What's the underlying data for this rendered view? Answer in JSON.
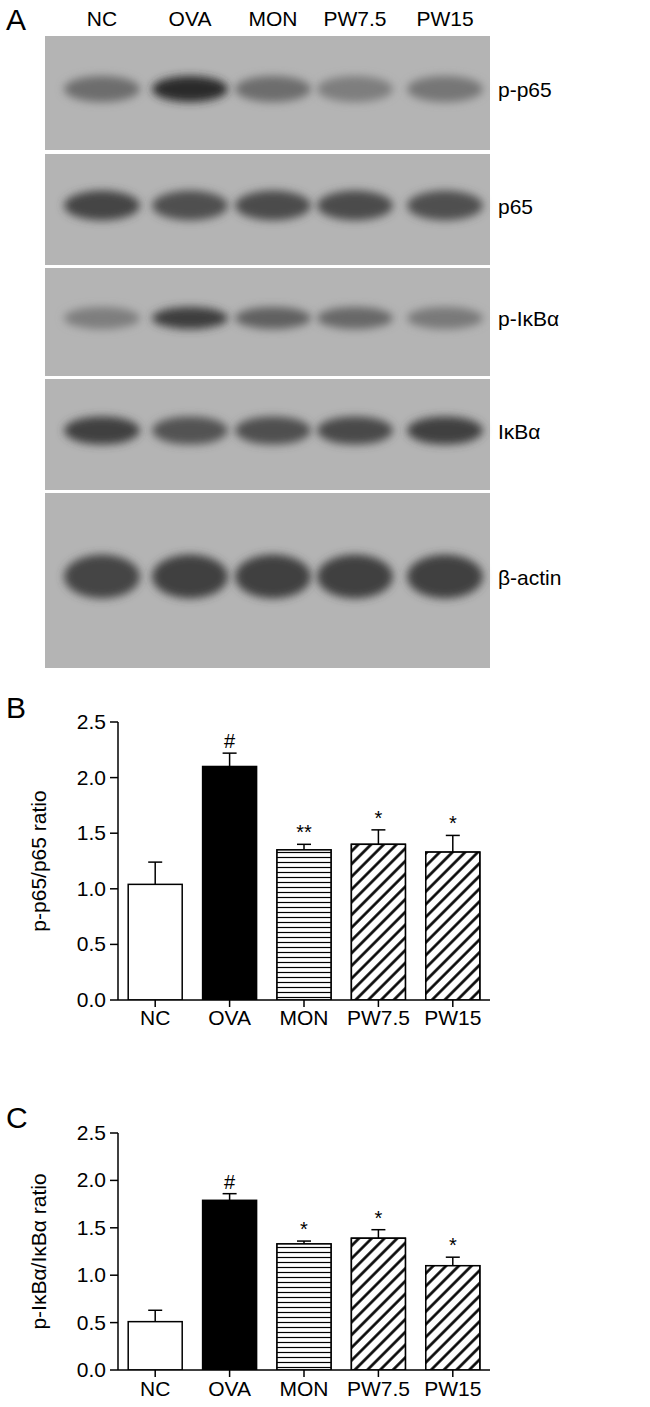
{
  "blot": {
    "panel_label": "A",
    "lanes": [
      "NC",
      "OVA",
      "MON",
      "PW7.5",
      "PW15"
    ],
    "rows": [
      {
        "label": "p-p65",
        "intensity": [
          0.55,
          0.92,
          0.55,
          0.45,
          0.5
        ]
      },
      {
        "label": "p65",
        "intensity": [
          0.78,
          0.72,
          0.74,
          0.74,
          0.72
        ]
      },
      {
        "label": "p-IκBα",
        "intensity": [
          0.45,
          0.82,
          0.62,
          0.58,
          0.48
        ]
      },
      {
        "label": "IκBα",
        "intensity": [
          0.8,
          0.7,
          0.72,
          0.75,
          0.8
        ]
      },
      {
        "label": "β-actin",
        "intensity": [
          0.78,
          0.8,
          0.8,
          0.8,
          0.8
        ]
      }
    ]
  },
  "chart_data": [
    {
      "type": "bar",
      "panel_label": "B",
      "y_label": "p-p65/p65 ratio",
      "categories": [
        "NC",
        "OVA",
        "MON",
        "PW7.5",
        "PW15"
      ],
      "values": [
        1.04,
        2.1,
        1.35,
        1.4,
        1.33
      ],
      "errors": [
        0.2,
        0.12,
        0.05,
        0.13,
        0.15
      ],
      "significance": [
        null,
        "#",
        "**",
        "*",
        "*"
      ],
      "colors": [
        "#ffffff",
        "#000000",
        "#ffffff",
        "#ffffff",
        "#ffffff"
      ],
      "ylim": [
        0,
        2.5
      ],
      "yticks": [
        {
          "value": 0,
          "label": "0.0"
        },
        0.5,
        {
          "value": 1,
          "label": "1.0"
        },
        1.5,
        {
          "value": 2,
          "label": "2.0"
        },
        2.5
      ]
    },
    {
      "type": "bar",
      "panel_label": "C",
      "y_label": "p-IκBα/IκBα ratio",
      "categories": [
        "NC",
        "OVA",
        "MON",
        "PW7.5",
        "PW15"
      ],
      "values": [
        0.51,
        1.79,
        1.33,
        1.39,
        1.1
      ],
      "errors": [
        0.12,
        0.07,
        0.03,
        0.09,
        0.09
      ],
      "significance": [
        null,
        "#",
        "*",
        "*",
        "*"
      ],
      "colors": [
        "#ffffff",
        "#000000",
        "#ffffff",
        "#ffffff",
        "#ffffff"
      ],
      "ylim": [
        0,
        2.5
      ],
      "yticks": [
        {
          "value": 0,
          "label": "0.0"
        },
        0.5,
        {
          "value": 1,
          "label": "1.0"
        },
        1.5,
        {
          "value": 2,
          "label": "2.0"
        },
        2.5
      ]
    }
  ]
}
